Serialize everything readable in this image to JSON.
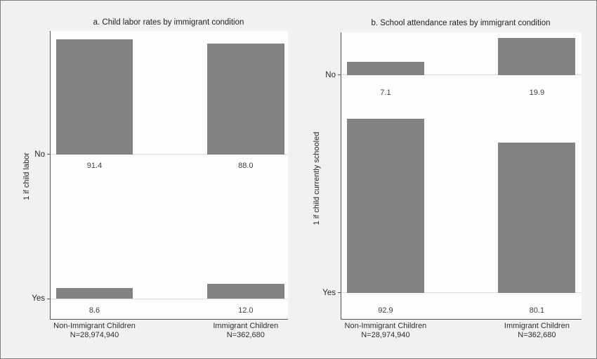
{
  "figure": {
    "background": "#f1f1ef",
    "plot_background": "#fdfdfd",
    "bar_color": "#828282",
    "axis_color": "#565656",
    "baseline_color": "#dcdcdc",
    "text_color": "#262626"
  },
  "chart_data": [
    {
      "type": "bar",
      "panel": "a",
      "title": "a. Child labor rates by immigrant condition",
      "ylabel": "1 if child labor",
      "categories": [
        {
          "name": "Non-Immigrant Children",
          "n": "N=28,974,940"
        },
        {
          "name": "Immigrant Children",
          "n": "N=362,680"
        }
      ],
      "rows": [
        {
          "label": "No",
          "values": [
            91.4,
            88.0
          ]
        },
        {
          "label": "Yes",
          "values": [
            8.6,
            12.0
          ]
        }
      ],
      "value_labels_shown": true,
      "grid": false,
      "legend": "none",
      "layout": {
        "row_baselines_pct": [
          42.9,
          93.0
        ],
        "bar_centers_pct": [
          18.5,
          82.2
        ],
        "bar_width_pct": 32.5,
        "bar_height_ratio": 0.8,
        "value_label_offset_ratio": 0.08
      }
    },
    {
      "type": "bar",
      "panel": "b",
      "title": "b. School attendance rates by immigrant condition",
      "ylabel": "1 if child currently schooled",
      "categories": [
        {
          "name": "Non-Immigrant Children",
          "n": "N=28,974,940"
        },
        {
          "name": "Immigrant Children",
          "n": "N=362,680"
        }
      ],
      "rows": [
        {
          "label": "No",
          "values": [
            7.1,
            19.9
          ]
        },
        {
          "label": "Yes",
          "values": [
            92.9,
            80.1
          ]
        }
      ],
      "value_labels_shown": true,
      "grid": false,
      "legend": "none",
      "layout": {
        "row_baselines_pct": [
          14.95,
          90.9
        ],
        "bar_centers_pct": [
          18.4,
          81.4
        ],
        "bar_width_pct": 32.2,
        "bar_height_ratio": 0.8,
        "value_label_offset_ratio": 0.08
      }
    }
  ]
}
